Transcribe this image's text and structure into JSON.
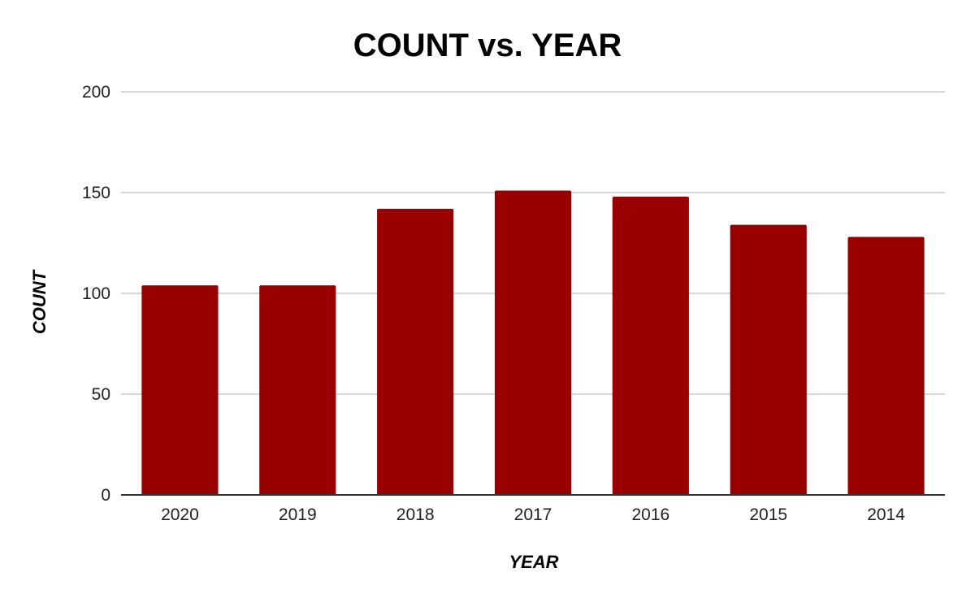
{
  "chart_data": {
    "type": "bar",
    "title": "COUNT vs. YEAR",
    "xlabel": "YEAR",
    "ylabel": "COUNT",
    "categories": [
      "2020",
      "2019",
      "2018",
      "2017",
      "2016",
      "2015",
      "2014"
    ],
    "values": [
      104,
      104,
      142,
      151,
      148,
      134,
      128
    ],
    "ylim": [
      0,
      200
    ],
    "yticks": [
      0,
      50,
      100,
      150,
      200
    ],
    "grid": true,
    "legend": "none",
    "bar_color": "#990000"
  }
}
